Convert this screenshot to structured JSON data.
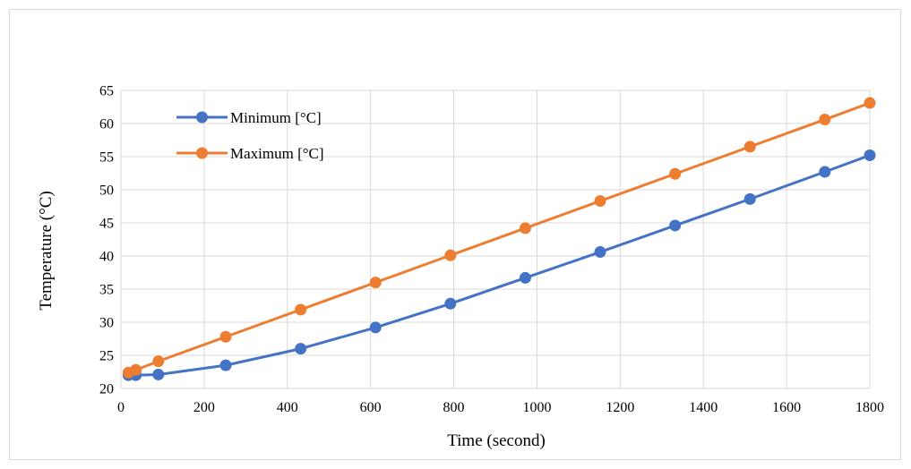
{
  "chart_data": {
    "type": "line",
    "title": "",
    "xlabel": "Time (second)",
    "ylabel": "Temperature (°C)",
    "xlim": [
      0,
      1800
    ],
    "ylim": [
      20,
      65
    ],
    "xticks": [
      0,
      200,
      400,
      600,
      800,
      1000,
      1200,
      1400,
      1600,
      1800
    ],
    "yticks": [
      20,
      25,
      30,
      35,
      40,
      45,
      50,
      55,
      60,
      65
    ],
    "grid": true,
    "legend_position": "top-left",
    "series": [
      {
        "name": "Minimum [°C]",
        "color": "#4472c4",
        "x": [
          18,
          36,
          90,
          252,
          432,
          612,
          792,
          972,
          1152,
          1332,
          1512,
          1692,
          1800
        ],
        "y": [
          22.0,
          22.0,
          22.1,
          23.5,
          26.0,
          29.2,
          32.8,
          36.7,
          40.6,
          44.6,
          48.6,
          52.7,
          55.2
        ]
      },
      {
        "name": "Maximum [°C]",
        "color": "#ed7d31",
        "x": [
          18,
          36,
          90,
          252,
          432,
          612,
          792,
          972,
          1152,
          1332,
          1512,
          1692,
          1800
        ],
        "y": [
          22.4,
          22.8,
          24.1,
          27.8,
          31.9,
          36.0,
          40.1,
          44.2,
          48.3,
          52.4,
          56.5,
          60.6,
          63.1
        ]
      }
    ]
  }
}
